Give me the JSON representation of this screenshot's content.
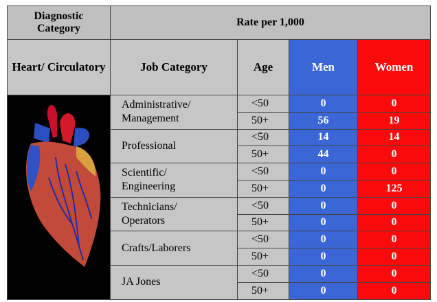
{
  "header": {
    "diagnostic_category": "Diagnostic Category",
    "rate": "Rate per 1,000",
    "condition": "Heart/ Circulatory",
    "job_category": "Job Category",
    "age": "Age",
    "men": "Men",
    "women": "Women"
  },
  "table": {
    "groups": [
      {
        "job": "Administrative/ Management",
        "rows": [
          {
            "age": "<50",
            "men": 0,
            "women": 0
          },
          {
            "age": "50+",
            "men": 56,
            "women": 19
          }
        ]
      },
      {
        "job": "Professional",
        "rows": [
          {
            "age": "<50",
            "men": 14,
            "women": 14
          },
          {
            "age": "50+",
            "men": 44,
            "women": 0
          }
        ]
      },
      {
        "job": "Scientific/ Engineering",
        "rows": [
          {
            "age": "<50",
            "men": 0,
            "women": 0
          },
          {
            "age": "50+",
            "men": 0,
            "women": 125
          }
        ]
      },
      {
        "job": "Technicians/ Operators",
        "rows": [
          {
            "age": "<50",
            "men": 0,
            "women": 0
          },
          {
            "age": "50+",
            "men": 0,
            "women": 0
          }
        ]
      },
      {
        "job": "Crafts/Laborers",
        "rows": [
          {
            "age": "<50",
            "men": 0,
            "women": 0
          },
          {
            "age": "50+",
            "men": 0,
            "women": 0
          }
        ]
      },
      {
        "job": "JA Jones",
        "rows": [
          {
            "age": "<50",
            "men": 0,
            "women": 0
          },
          {
            "age": "50+",
            "men": 0,
            "women": 0
          }
        ]
      }
    ]
  }
}
